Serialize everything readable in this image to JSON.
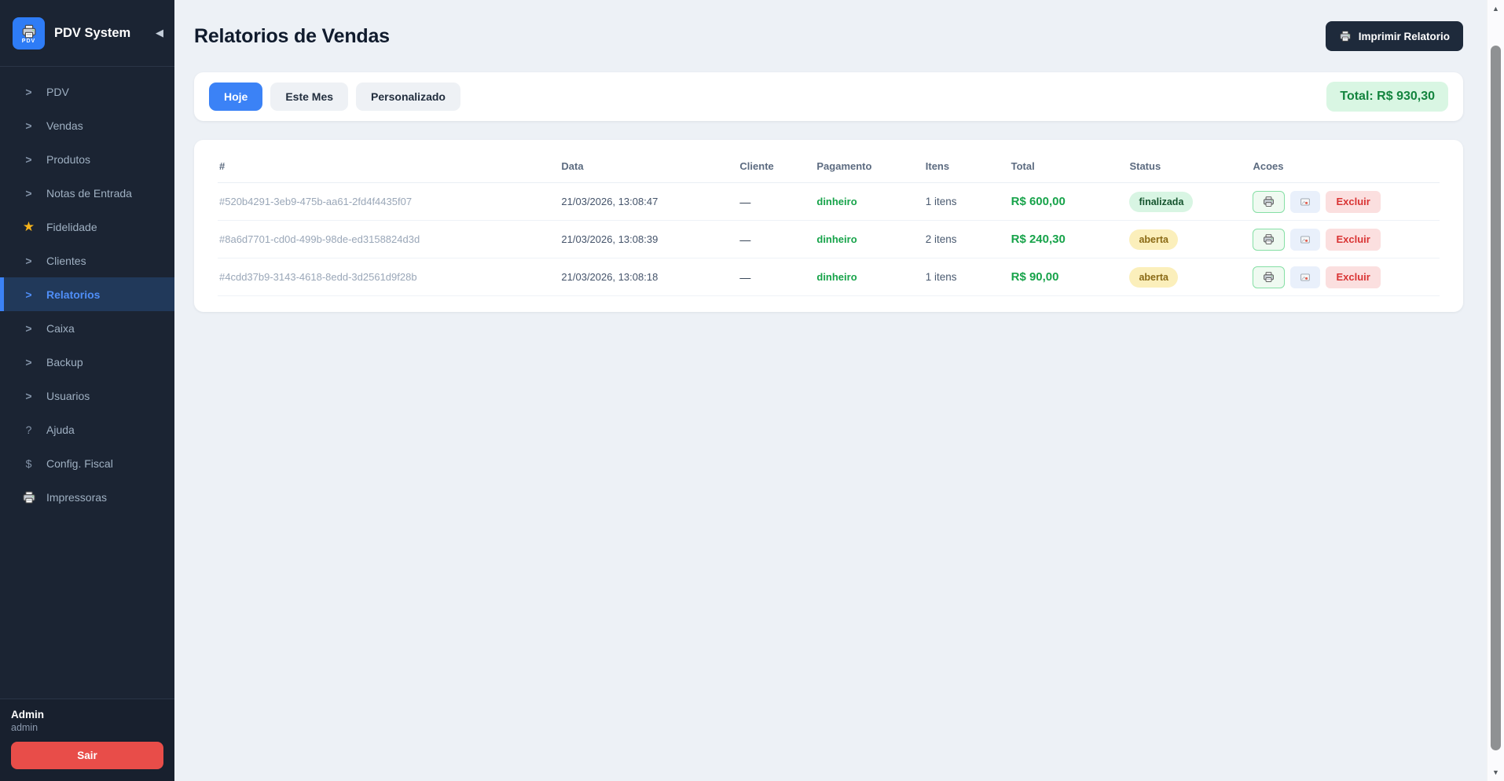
{
  "app": {
    "title": "PDV System",
    "logo_text": "PDV",
    "collapse_icon": "◀"
  },
  "sidebar": {
    "items": [
      {
        "label": "PDV",
        "icon": "chevron-right",
        "active": false
      },
      {
        "label": "Vendas",
        "icon": "chevron-right",
        "active": false
      },
      {
        "label": "Produtos",
        "icon": "chevron-right",
        "active": false
      },
      {
        "label": "Notas de Entrada",
        "icon": "chevron-right",
        "active": false
      },
      {
        "label": "Fidelidade",
        "icon": "star",
        "active": false
      },
      {
        "label": "Clientes",
        "icon": "chevron-right",
        "active": false
      },
      {
        "label": "Relatorios",
        "icon": "chevron-right",
        "active": true
      },
      {
        "label": "Caixa",
        "icon": "chevron-right",
        "active": false
      },
      {
        "label": "Backup",
        "icon": "chevron-right",
        "active": false
      },
      {
        "label": "Usuarios",
        "icon": "chevron-right",
        "active": false
      },
      {
        "label": "Ajuda",
        "icon": "question",
        "active": false
      },
      {
        "label": "Config. Fiscal",
        "icon": "dollar",
        "active": false
      },
      {
        "label": "Impressoras",
        "icon": "printer",
        "active": false
      }
    ],
    "footer": {
      "user_name": "Admin",
      "user_role": "admin",
      "logout_label": "Sair"
    }
  },
  "header": {
    "title": "Relatorios de Vendas",
    "print_button_label": "Imprimir Relatorio"
  },
  "filters": {
    "options": [
      {
        "label": "Hoje",
        "active": true
      },
      {
        "label": "Este Mes",
        "active": false
      },
      {
        "label": "Personalizado",
        "active": false
      }
    ],
    "total_label": "Total: R$ 930,30"
  },
  "table": {
    "columns": [
      "#",
      "Data",
      "Cliente",
      "Pagamento",
      "Itens",
      "Total",
      "Status",
      "Acoes"
    ],
    "rows": [
      {
        "id": "#520b4291-3eb9-475b-aa61-2fd4f4435f07",
        "date": "21/03/2026, 13:08:47",
        "client": "—",
        "payment": "dinheiro",
        "items": "1 itens",
        "total": "R$ 600,00",
        "status": "finalizada",
        "status_variant": "success"
      },
      {
        "id": "#8a6d7701-cd0d-499b-98de-ed3158824d3d",
        "date": "21/03/2026, 13:08:39",
        "client": "—",
        "payment": "dinheiro",
        "items": "2 itens",
        "total": "R$ 240,30",
        "status": "aberta",
        "status_variant": "warning"
      },
      {
        "id": "#4cdd37b9-3143-4618-8edd-3d2561d9f28b",
        "date": "21/03/2026, 13:08:18",
        "client": "—",
        "payment": "dinheiro",
        "items": "1 itens",
        "total": "R$ 90,00",
        "status": "aberta",
        "status_variant": "warning"
      }
    ],
    "actions": {
      "delete_label": "Excluir"
    }
  },
  "colors": {
    "accent_blue": "#3b82f6",
    "success_green": "#17a34a",
    "danger_red": "#e84d49",
    "sidebar_bg": "#1b2433",
    "sidebar_active_bg": "#21395a",
    "total_badge_bg": "#d9f6e3",
    "badge_success_bg": "#d8f5e3",
    "badge_warning_bg": "#fbefbb"
  }
}
